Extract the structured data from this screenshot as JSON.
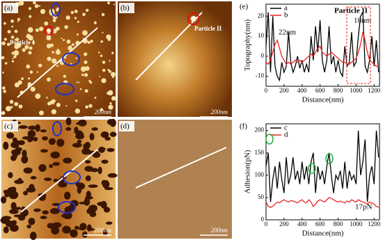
{
  "images": [
    {
      "label": "(a)",
      "texts": [
        "Particle I",
        "200nm"
      ]
    },
    {
      "label": "(b)",
      "texts": [
        "Particle II",
        "200nm"
      ]
    },
    {
      "label": "(c)",
      "texts": [
        "200nm"
      ]
    },
    {
      "label": "(d)",
      "texts": [
        "200nm"
      ]
    }
  ],
  "chart_data": [
    {
      "type": "line",
      "panel_label": "(e)",
      "xlabel": "Distance(nm)",
      "ylabel": "Topography(nm)",
      "xlim": [
        0,
        1260
      ],
      "xticks": [
        0,
        200,
        400,
        600,
        800,
        1000,
        1200
      ],
      "ylim": [
        -15,
        26
      ],
      "yticks": [
        -10,
        0,
        10,
        20
      ],
      "legend": "upper left",
      "annotations": [
        "Particle II",
        "18nm",
        "22nm"
      ],
      "x": [
        0,
        25,
        50,
        75,
        100,
        125,
        150,
        175,
        200,
        225,
        250,
        275,
        300,
        325,
        350,
        375,
        400,
        425,
        450,
        475,
        500,
        525,
        550,
        575,
        600,
        625,
        650,
        675,
        700,
        725,
        750,
        775,
        800,
        825,
        850,
        875,
        900,
        925,
        950,
        975,
        1000,
        1025,
        1050,
        1075,
        1100,
        1125,
        1150,
        1175,
        1200,
        1225,
        1250
      ],
      "series": [
        {
          "name": "a",
          "color": "#000000",
          "values": [
            5,
            22,
            -8,
            20,
            -5,
            -10,
            -12,
            -3,
            -8,
            -5,
            12,
            -3,
            -8,
            -5,
            0,
            -6,
            -2,
            -8,
            -4,
            -8,
            10,
            -2,
            15,
            2,
            18,
            -2,
            -8,
            -2,
            15,
            -4,
            0,
            -8,
            -2,
            -8,
            -10,
            5,
            -5,
            -3,
            12,
            -5,
            -3,
            10,
            20,
            22,
            -5,
            -8,
            -2,
            10,
            -5,
            8,
            -8
          ]
        },
        {
          "name": "b",
          "color": "#e8231e",
          "values": [
            -3,
            -4,
            -2,
            2,
            6,
            8,
            4,
            0,
            -2,
            -4,
            -3,
            -4,
            -3,
            -2,
            -3,
            -2,
            -3,
            -2,
            -1,
            0,
            1,
            0,
            2,
            4,
            5,
            2,
            1,
            0,
            1,
            2,
            1,
            0,
            -1,
            -2,
            -3,
            -3,
            -4,
            -4,
            -3,
            -2,
            -1,
            2,
            6,
            12,
            8,
            2,
            -2,
            -3,
            -4,
            -5,
            -5
          ]
        }
      ]
    },
    {
      "type": "line",
      "panel_label": "(f)",
      "xlabel": "Distance(nm)",
      "ylabel": "Adhesion(pN)",
      "xlim": [
        0,
        1260
      ],
      "xticks": [
        0,
        200,
        400,
        600,
        800,
        1000,
        1200
      ],
      "ylim": [
        0,
        215
      ],
      "yticks": [
        0,
        50,
        100,
        150,
        200
      ],
      "legend": "upper left",
      "annotations": [
        "17pN"
      ],
      "x": [
        0,
        25,
        50,
        75,
        100,
        125,
        150,
        175,
        200,
        225,
        250,
        275,
        300,
        325,
        350,
        375,
        400,
        425,
        450,
        475,
        500,
        525,
        550,
        575,
        600,
        625,
        650,
        675,
        700,
        725,
        750,
        775,
        800,
        825,
        850,
        875,
        900,
        925,
        950,
        975,
        1000,
        1025,
        1050,
        1075,
        1100,
        1125,
        1150,
        1175,
        1200,
        1225,
        1250
      ],
      "series": [
        {
          "name": "c",
          "color": "#000000",
          "values": [
            120,
            150,
            40,
            90,
            120,
            70,
            130,
            90,
            60,
            140,
            80,
            100,
            140,
            90,
            110,
            80,
            130,
            90,
            120,
            80,
            130,
            150,
            60,
            120,
            90,
            110,
            80,
            120,
            150,
            100,
            60,
            100,
            90,
            110,
            70,
            130,
            70,
            110,
            90,
            100,
            80,
            200,
            100,
            130,
            180,
            40,
            100,
            120,
            80,
            200,
            140
          ]
        },
        {
          "name": "d",
          "color": "#e8231e",
          "values": [
            40,
            30,
            28,
            30,
            35,
            40,
            38,
            42,
            45,
            42,
            40,
            43,
            42,
            40,
            38,
            42,
            45,
            40,
            38,
            45,
            40,
            30,
            35,
            42,
            45,
            42,
            40,
            45,
            50,
            48,
            45,
            42,
            40,
            42,
            40,
            38,
            42,
            40,
            45,
            42,
            40,
            45,
            42,
            40,
            38,
            35,
            40,
            38,
            35,
            30,
            28
          ]
        }
      ]
    }
  ]
}
